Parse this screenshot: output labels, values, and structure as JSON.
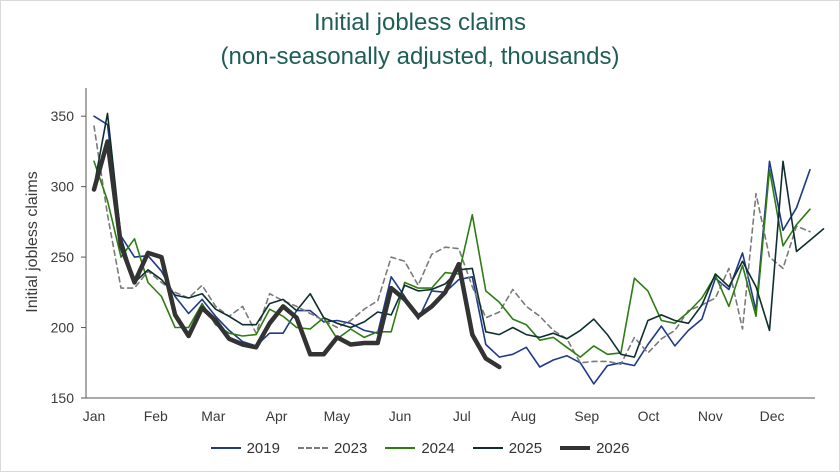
{
  "chart_data": {
    "type": "line",
    "title": "Initial jobless claims",
    "subtitle": "(non-seasonally adjusted, thousands)",
    "ylabel": "Initial jobless claims",
    "xlabel": "",
    "ylim": [
      150,
      370
    ],
    "yticks": [
      150,
      200,
      250,
      300,
      350
    ],
    "xlim": [
      0,
      51
    ],
    "month_ticks": [
      {
        "label": "Jan",
        "week": 0
      },
      {
        "label": "Feb",
        "week": 4.4
      },
      {
        "label": "Mar",
        "week": 8.5
      },
      {
        "label": "Apr",
        "week": 13
      },
      {
        "label": "May",
        "week": 17.3
      },
      {
        "label": "Jun",
        "week": 21.8
      },
      {
        "label": "Jul",
        "week": 26.2
      },
      {
        "label": "Aug",
        "week": 30.6
      },
      {
        "label": "Sep",
        "week": 35.1
      },
      {
        "label": "Oct",
        "week": 39.5
      },
      {
        "label": "Nov",
        "week": 43.9
      },
      {
        "label": "Dec",
        "week": 48.3
      }
    ],
    "grid": false,
    "legend_position": "bottom",
    "series": [
      {
        "name": "2019",
        "color": "#1f3a8a",
        "dash": "",
        "width": 1.6,
        "values": [
          350,
          344,
          265,
          250,
          251,
          240,
          222,
          210,
          220,
          208,
          198,
          190,
          187,
          196,
          196,
          212,
          212,
          204,
          205,
          203,
          198,
          196,
          236,
          222,
          206,
          226,
          225,
          234,
          236,
          188,
          179,
          181,
          186,
          172,
          177,
          180,
          175,
          160,
          173,
          175,
          173,
          188,
          201,
          187,
          198,
          206,
          235,
          227,
          253,
          212,
          318,
          269,
          285,
          312
        ]
      },
      {
        "name": "2023",
        "color": "#7a7a7a",
        "dash": "5,4",
        "width": 1.6,
        "values": [
          343,
          280,
          228,
          228,
          240,
          232,
          225,
          221,
          230,
          215,
          208,
          215,
          196,
          224,
          219,
          215,
          210,
          205,
          200,
          205,
          213,
          219,
          250,
          247,
          230,
          252,
          257,
          256,
          229,
          207,
          211,
          227,
          215,
          208,
          198,
          192,
          175,
          176,
          176,
          174,
          193,
          182,
          192,
          198,
          212,
          216,
          221,
          242,
          199,
          295,
          250,
          242,
          272,
          268
        ]
      },
      {
        "name": "2024",
        "color": "#2e7d14",
        "dash": "",
        "width": 1.6,
        "values": [
          318,
          290,
          250,
          263,
          232,
          222,
          200,
          200,
          217,
          202,
          196,
          194,
          195,
          213,
          208,
          200,
          199,
          207,
          192,
          199,
          193,
          197,
          197,
          232,
          228,
          228,
          239,
          238,
          280,
          226,
          218,
          206,
          202,
          191,
          193,
          186,
          179,
          187,
          181,
          182,
          235,
          226,
          205,
          203,
          211,
          221,
          237,
          215,
          244,
          208,
          312,
          258,
          273,
          284
        ]
      },
      {
        "name": "2025",
        "color": "#0f2f2f",
        "dash": "",
        "width": 1.6,
        "values": [
          300,
          352,
          264,
          232,
          241,
          234,
          223,
          221,
          224,
          213,
          208,
          202,
          202,
          217,
          220,
          212,
          224,
          207,
          203,
          200,
          204,
          211,
          209,
          230,
          226,
          227,
          231,
          241,
          242,
          197,
          195,
          200,
          195,
          193,
          196,
          192,
          198,
          206,
          195,
          181,
          179,
          205,
          209,
          205,
          203,
          216,
          238,
          229,
          247,
          229,
          198,
          318,
          254,
          262,
          270
        ]
      },
      {
        "name": "2026",
        "color": "#333333",
        "dash": "",
        "width": 4.5,
        "values": [
          298,
          332,
          258,
          232,
          253,
          250,
          209,
          194,
          214,
          205,
          192,
          188,
          186,
          203,
          215,
          207,
          181,
          181,
          193,
          188,
          189,
          189,
          228,
          220,
          208,
          215,
          225,
          245,
          195,
          178,
          172
        ]
      }
    ]
  }
}
